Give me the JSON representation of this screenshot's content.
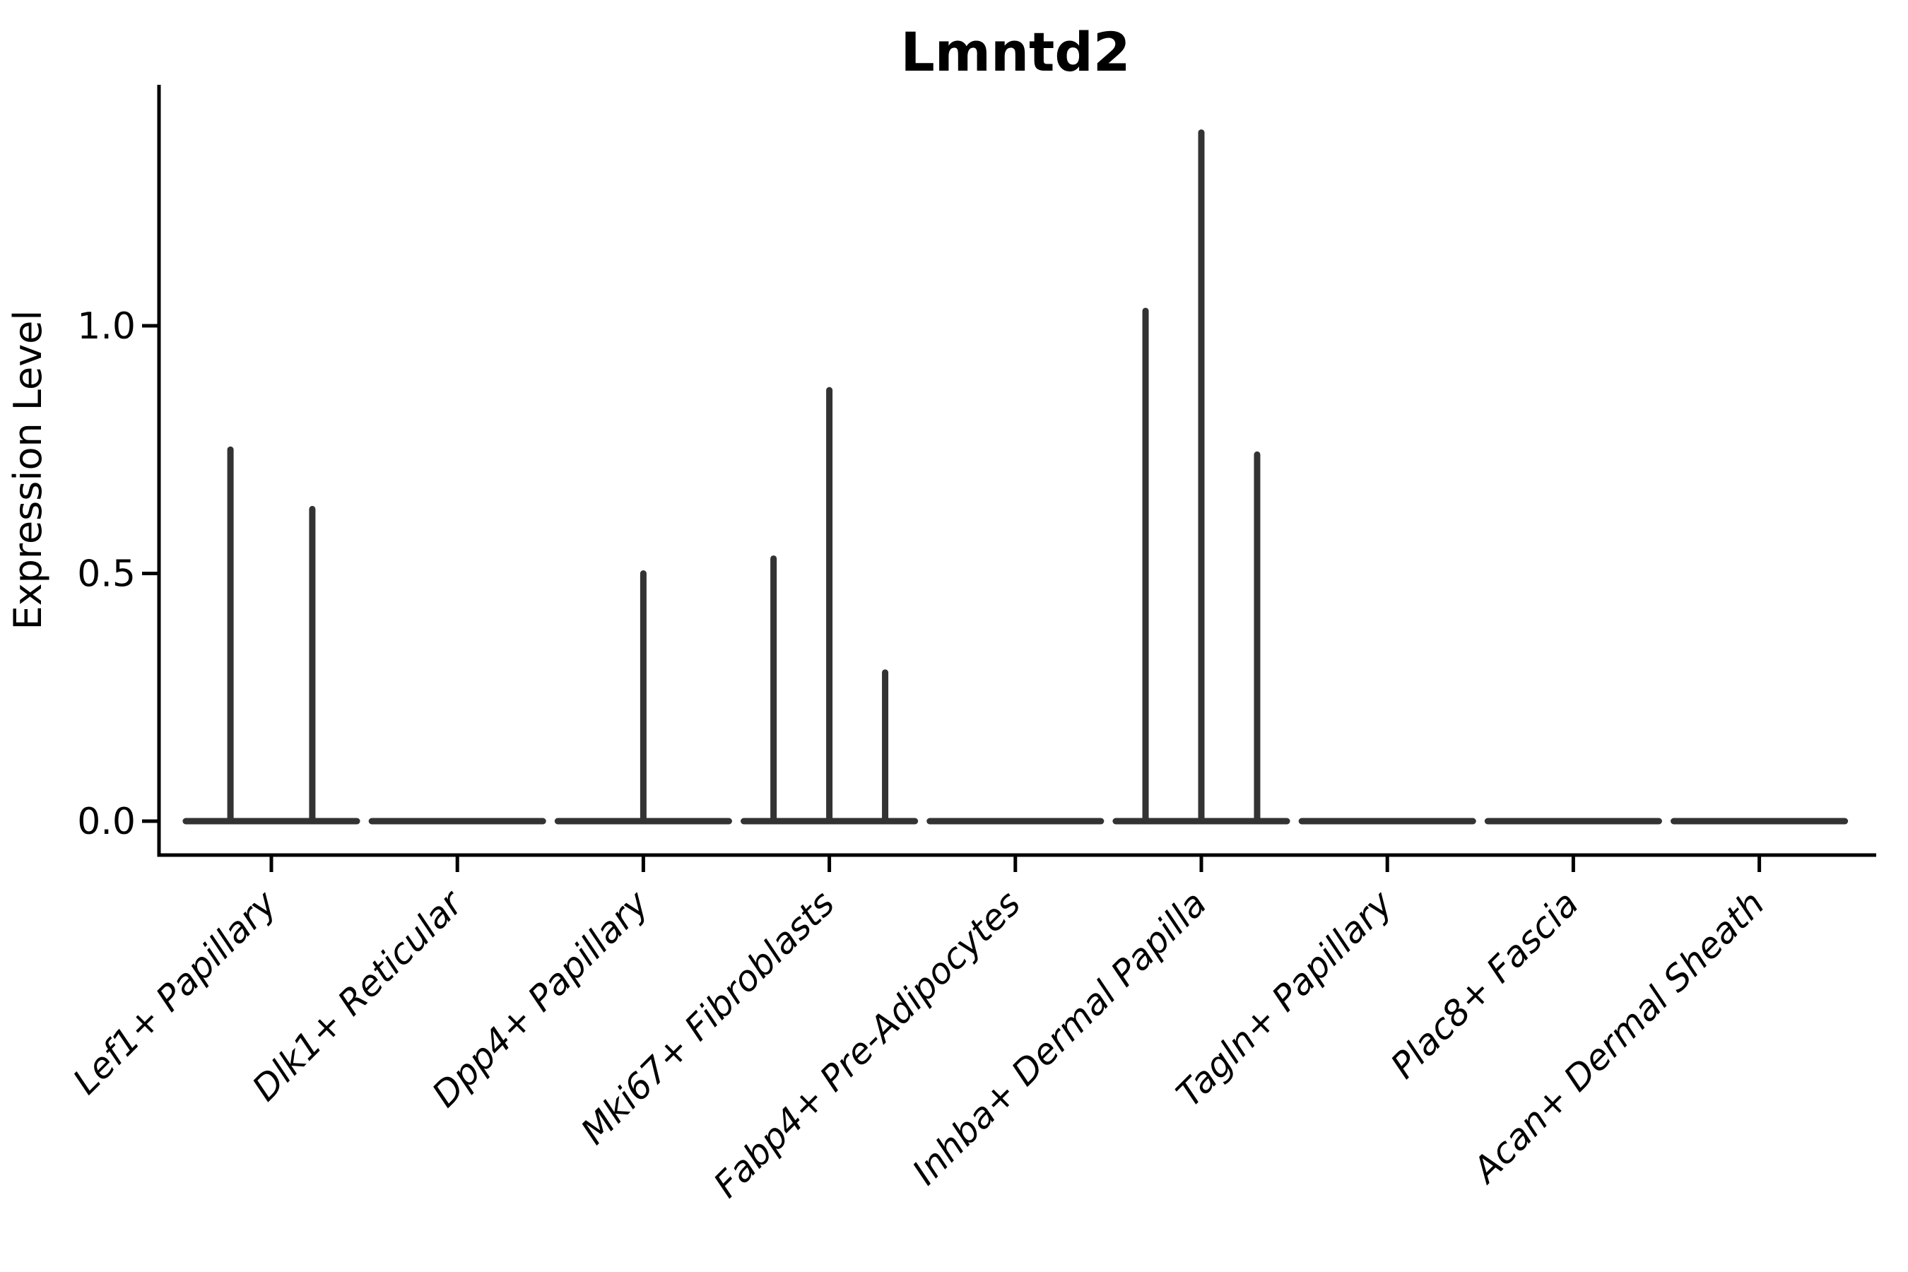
{
  "figure": {
    "title": "Lmntd2"
  },
  "colors": {
    "background": "#ffffff",
    "axis": "#000000",
    "text": "#000000",
    "violin_line": "#333333"
  },
  "chart_data": {
    "type": "violin",
    "title": "Lmntd2",
    "xlabel": "",
    "ylabel": "Expression Level",
    "grid": false,
    "legend": "none",
    "ylim": [
      -0.07,
      1.49
    ],
    "ytick_labels": [
      "0.0",
      "0.5",
      "1.0"
    ],
    "ytick_values": [
      0.0,
      0.5,
      1.0
    ],
    "x_tick_rotation": 45,
    "categories": [
      "Lef1+ Papillary",
      "Dlk1+ Reticular",
      "Dpp4+ Papillary",
      "Mki67+ Fibroblasts",
      "Fabp4+ Pre-Adipocytes",
      "Inhba+ Dermal Papilla",
      "Tagln+ Papillary",
      "Plac8+ Fascia",
      "Acan+ Dermal Sheath"
    ],
    "baseline_value": 0.0,
    "baseline_halfwidth": 0.46,
    "violins": [
      {
        "category": "Lef1+ Papillary",
        "baseline_value": 0.0,
        "spikes": [
          {
            "dx": -0.22,
            "value": 0.75
          },
          {
            "dx": 0.22,
            "value": 0.63
          }
        ]
      },
      {
        "category": "Dlk1+ Reticular",
        "baseline_value": 0.0,
        "spikes": []
      },
      {
        "category": "Dpp4+ Papillary",
        "baseline_value": 0.0,
        "spikes": [
          {
            "dx": 0.0,
            "value": 0.5
          }
        ]
      },
      {
        "category": "Mki67+ Fibroblasts",
        "baseline_value": 0.0,
        "spikes": [
          {
            "dx": -0.3,
            "value": 0.53
          },
          {
            "dx": 0.0,
            "value": 0.87
          },
          {
            "dx": 0.3,
            "value": 0.3
          }
        ]
      },
      {
        "category": "Fabp4+ Pre-Adipocytes",
        "baseline_value": 0.0,
        "spikes": []
      },
      {
        "category": "Inhba+ Dermal Papilla",
        "baseline_value": 0.0,
        "spikes": [
          {
            "dx": -0.3,
            "value": 1.03
          },
          {
            "dx": 0.0,
            "value": 1.39
          },
          {
            "dx": 0.3,
            "value": 0.74
          }
        ]
      },
      {
        "category": "Tagln+ Papillary",
        "baseline_value": 0.0,
        "spikes": []
      },
      {
        "category": "Plac8+ Fascia",
        "baseline_value": 0.0,
        "spikes": []
      },
      {
        "category": "Acan+ Dermal Sheath",
        "baseline_value": 0.0,
        "spikes": []
      }
    ]
  }
}
